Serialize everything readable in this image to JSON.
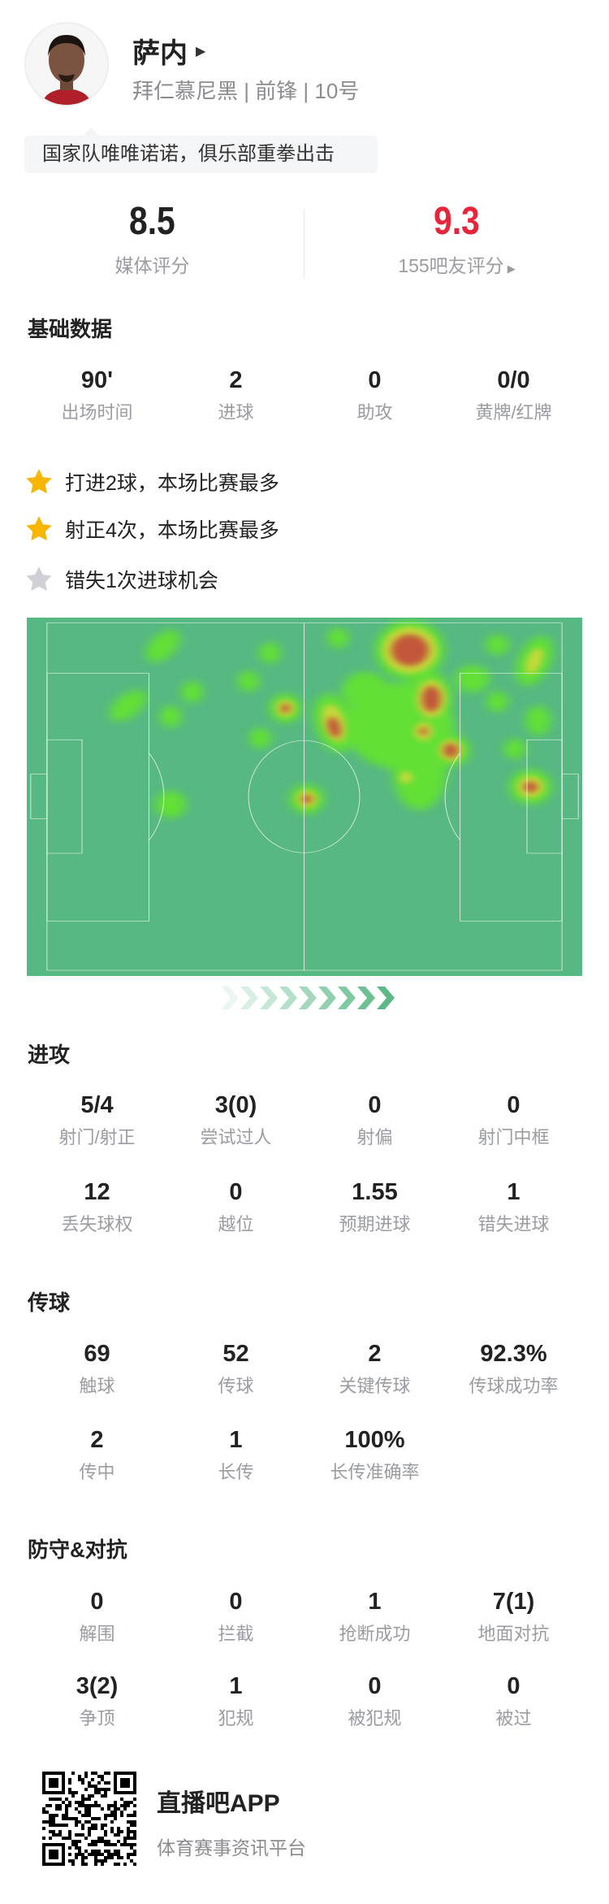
{
  "player": {
    "name": "萨内",
    "subtitle": "拜仁慕尼黑 | 前锋 | 10号",
    "tagline": "国家队唯唯诺诺，俱乐部重拳出击"
  },
  "ratings": {
    "media": {
      "value": "8.5",
      "label": "媒体评分"
    },
    "fans": {
      "value": "9.3",
      "label": "155吧友评分",
      "color": "#e8233a"
    }
  },
  "basic": {
    "title": "基础数据",
    "stats": [
      {
        "value": "90'",
        "label": "出场时间"
      },
      {
        "value": "2",
        "label": "进球"
      },
      {
        "value": "0",
        "label": "助攻"
      },
      {
        "value": "0/0",
        "label": "黄牌/红牌"
      }
    ]
  },
  "highlights": [
    {
      "text": "打进2球，本场比赛最多",
      "icon": "star-gold"
    },
    {
      "text": "射正4次，本场比赛最多",
      "icon": "star-gold"
    },
    {
      "text": "错失1次进球机会",
      "icon": "star-gray"
    }
  ],
  "heatmap": {
    "pitch_color": "#57b883",
    "attack_direction": "right"
  },
  "attack": {
    "title": "进攻",
    "stats": [
      {
        "value": "5/4",
        "label": "射门/射正"
      },
      {
        "value": "3(0)",
        "label": "尝试过人"
      },
      {
        "value": "0",
        "label": "射偏"
      },
      {
        "value": "0",
        "label": "射门中框"
      },
      {
        "value": "12",
        "label": "丢失球权"
      },
      {
        "value": "0",
        "label": "越位"
      },
      {
        "value": "1.55",
        "label": "预期进球"
      },
      {
        "value": "1",
        "label": "错失进球"
      }
    ]
  },
  "passing": {
    "title": "传球",
    "stats": [
      {
        "value": "69",
        "label": "触球"
      },
      {
        "value": "52",
        "label": "传球"
      },
      {
        "value": "2",
        "label": "关键传球"
      },
      {
        "value": "92.3%",
        "label": "传球成功率"
      },
      {
        "value": "2",
        "label": "传中"
      },
      {
        "value": "1",
        "label": "长传"
      },
      {
        "value": "100%",
        "label": "长传准确率"
      }
    ]
  },
  "defense": {
    "title": "防守&对抗",
    "stats": [
      {
        "value": "0",
        "label": "解围"
      },
      {
        "value": "0",
        "label": "拦截"
      },
      {
        "value": "1",
        "label": "抢断成功"
      },
      {
        "value": "7(1)",
        "label": "地面对抗"
      },
      {
        "value": "3(2)",
        "label": "争顶"
      },
      {
        "value": "1",
        "label": "犯规"
      },
      {
        "value": "0",
        "label": "被犯规"
      },
      {
        "value": "0",
        "label": "被过"
      }
    ]
  },
  "footer": {
    "app_name": "直播吧APP",
    "app_desc": "体育赛事资讯平台"
  }
}
